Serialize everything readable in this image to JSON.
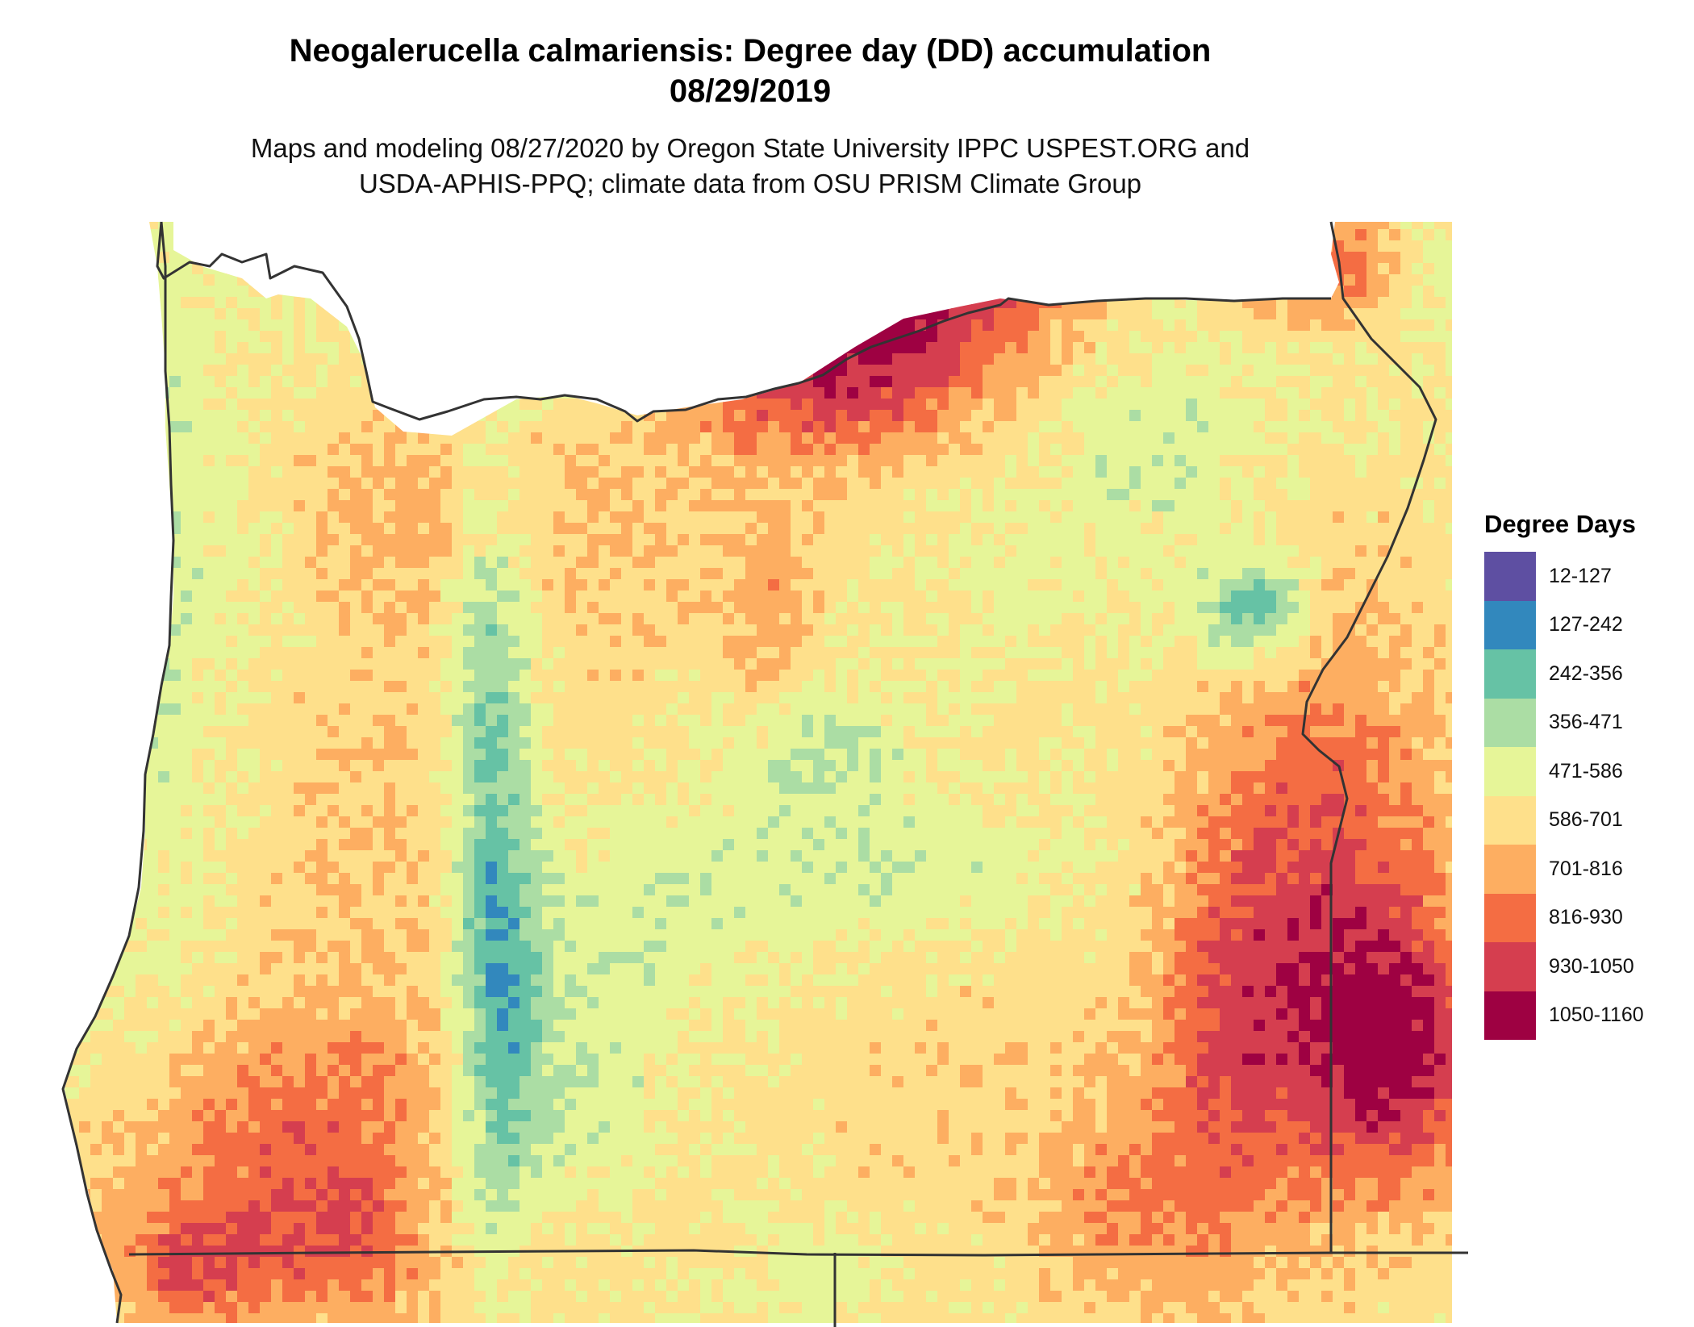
{
  "header": {
    "title_line1": "Neogalerucella calmariensis: Degree day (DD) accumulation",
    "title_line2": "08/29/2019",
    "subtitle_line1": "Maps and modeling 08/27/2020 by Oregon State University IPPC USPEST.ORG and",
    "subtitle_line2": "USDA-APHIS-PPQ; climate data from OSU PRISM Climate Group"
  },
  "legend": {
    "title": "Degree Days",
    "items": [
      {
        "label": "12-127",
        "color": "#5e4fa2"
      },
      {
        "label": "127-242",
        "color": "#3288bd"
      },
      {
        "label": "242-356",
        "color": "#66c2a5"
      },
      {
        "label": "356-471",
        "color": "#abdda4"
      },
      {
        "label": "471-586",
        "color": "#e6f598"
      },
      {
        "label": "586-701",
        "color": "#fee08b"
      },
      {
        "label": "701-816",
        "color": "#fdae61"
      },
      {
        "label": "816-930",
        "color": "#f46d43"
      },
      {
        "label": "930-1050",
        "color": "#d53e4f"
      },
      {
        "label": "1050-1160",
        "color": "#9e0142"
      }
    ]
  },
  "map": {
    "region": "Oregon",
    "boundary_color": "#333333",
    "coloring": "degree-day-classes"
  }
}
